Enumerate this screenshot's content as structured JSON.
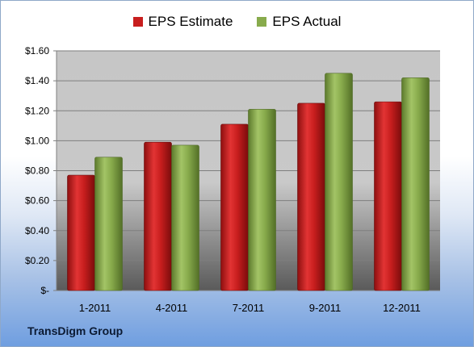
{
  "chart_data": {
    "type": "bar",
    "categories": [
      "1-2011",
      "4-2011",
      "7-2011",
      "9-2011",
      "12-2011"
    ],
    "series": [
      {
        "name": "EPS Estimate",
        "values": [
          0.77,
          0.99,
          1.11,
          1.25,
          1.26
        ],
        "color": "#c81e1e"
      },
      {
        "name": "EPS Actual",
        "values": [
          0.89,
          0.97,
          1.21,
          1.45,
          1.42
        ],
        "color": "#88ab4c"
      }
    ],
    "ylim": [
      0,
      1.6
    ],
    "yticks": [
      {
        "value": 0,
        "label": "$-"
      },
      {
        "value": 0.2,
        "label": "$0.20"
      },
      {
        "value": 0.4,
        "label": "$0.40"
      },
      {
        "value": 0.6,
        "label": "$0.60"
      },
      {
        "value": 0.8,
        "label": "$0.80"
      },
      {
        "value": 1.0,
        "label": "$1.00"
      },
      {
        "value": 1.2,
        "label": "$1.20"
      },
      {
        "value": 1.4,
        "label": "$1.40"
      },
      {
        "value": 1.6,
        "label": "$1.60"
      }
    ],
    "grid": true,
    "legend_position": "top-center",
    "footer": "TransDigm Group"
  }
}
